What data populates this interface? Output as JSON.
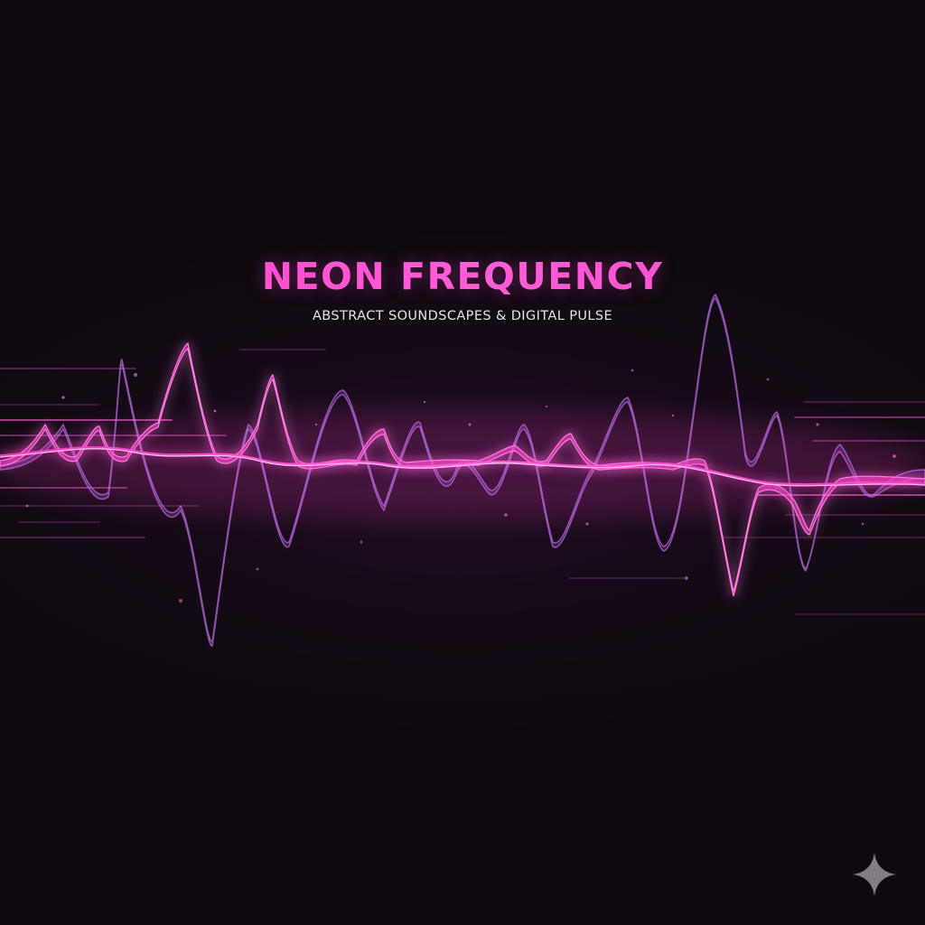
{
  "artwork": {
    "title": "NEON FREQUENCY",
    "subtitle": "ABSTRACT SOUNDSCAPES & DIGITAL PULSE"
  },
  "colors": {
    "background": "#0e0a0f",
    "neon_pink": "#ff3ec9",
    "violet": "#b04fd8",
    "core_glow": "#ffd0f5"
  },
  "icons": {
    "corner_mark": "sparkle-icon"
  }
}
